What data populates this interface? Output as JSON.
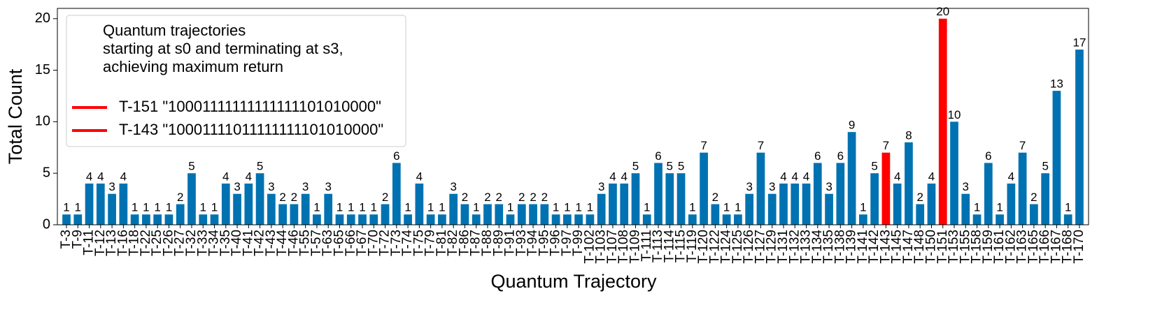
{
  "chart_data": {
    "type": "bar",
    "xlabel": "Quantum Trajectory",
    "ylabel": "Total Count",
    "categories": [
      "T-3",
      "T-9",
      "T-11",
      "T-12",
      "T-13",
      "T-16",
      "T-18",
      "T-22",
      "T-25",
      "T-26",
      "T-27",
      "T-32",
      "T-33",
      "T-34",
      "T-35",
      "T-40",
      "T-41",
      "T-42",
      "T-43",
      "T-44",
      "T-46",
      "T-55",
      "T-57",
      "T-63",
      "T-65",
      "T-66",
      "T-67",
      "T-70",
      "T-72",
      "T-73",
      "T-74",
      "T-75",
      "T-79",
      "T-81",
      "T-82",
      "T-86",
      "T-87",
      "T-88",
      "T-89",
      "T-91",
      "T-93",
      "T-94",
      "T-95",
      "T-96",
      "T-97",
      "T-99",
      "T-102",
      "T-103",
      "T-107",
      "T-108",
      "T-109",
      "T-111",
      "T-113",
      "T-114",
      "T-115",
      "T-119",
      "T-120",
      "T-122",
      "T-124",
      "T-125",
      "T-126",
      "T-127",
      "T-129",
      "T-131",
      "T-132",
      "T-133",
      "T-134",
      "T-135",
      "T-138",
      "T-139",
      "T-141",
      "T-142",
      "T-143",
      "T-145",
      "T-147",
      "T-148",
      "T-150",
      "T-151",
      "T-153",
      "T-155",
      "T-158",
      "T-159",
      "T-161",
      "T-162",
      "T-163",
      "T-165",
      "T-166",
      "T-167",
      "T-168",
      "T-170"
    ],
    "values": [
      1,
      1,
      4,
      4,
      3,
      4,
      1,
      1,
      1,
      1,
      2,
      5,
      1,
      1,
      4,
      3,
      4,
      5,
      3,
      2,
      2,
      3,
      1,
      3,
      1,
      1,
      1,
      1,
      2,
      6,
      1,
      4,
      1,
      1,
      3,
      2,
      1,
      2,
      2,
      1,
      2,
      2,
      2,
      1,
      1,
      1,
      1,
      3,
      4,
      4,
      5,
      1,
      6,
      5,
      5,
      1,
      7,
      2,
      1,
      1,
      3,
      7,
      3,
      4,
      4,
      4,
      6,
      3,
      6,
      9,
      1,
      5,
      7,
      4,
      8,
      2,
      4,
      20,
      10,
      3,
      1,
      6,
      1,
      4,
      7,
      2,
      5,
      13,
      1,
      17
    ],
    "color": "#0072b2",
    "highlight_color": "#ff0000",
    "highlighted": [
      "T-143",
      "T-151"
    ],
    "ylim": [
      0,
      21
    ],
    "yticks": [
      0,
      5,
      10,
      15,
      20
    ],
    "legend_title": [
      "Quantum trajectories",
      "starting at s0 and terminating at s3,",
      "achieving maximum return"
    ],
    "legend": [
      {
        "label": "T-151 \"10001111111111111101010000\"",
        "color": "#ff0000"
      },
      {
        "label": "T-143 \"10001111011111111101010000\"",
        "color": "#ff0000"
      }
    ],
    "legend_position": "upper left"
  }
}
